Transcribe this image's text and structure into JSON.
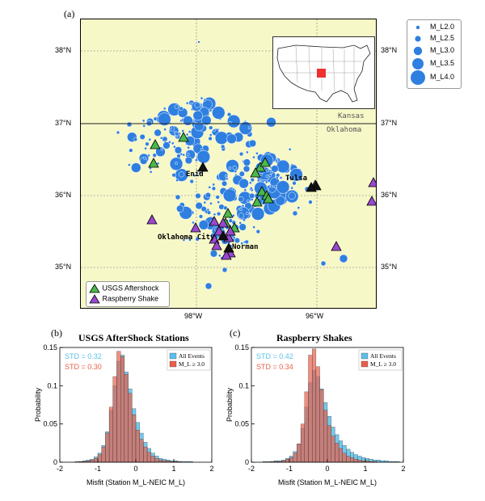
{
  "figure": {
    "panel_a": {
      "label": "(a)",
      "lat_ticks": [
        "38°N",
        "37°N",
        "36°N",
        "35°N"
      ],
      "lon_ticks": [
        "98°W",
        "96°W"
      ],
      "state_labels": {
        "kansas": "Kansas",
        "oklahoma": "Oklahoma"
      },
      "cities": {
        "enid": "Enid",
        "tulsa": "Tulsa",
        "okc": "Oklahoma City",
        "norman": "Norman"
      },
      "station_legend": {
        "usgs": "USGS Aftershock",
        "rshake": "Raspberry Shake"
      },
      "magnitude_legend": [
        "M_L2.0",
        "M_L2.5",
        "M_L3.0",
        "M_L3.5",
        "M_L4.0"
      ],
      "colors": {
        "map_bg": "#f7f8c8",
        "event": "#2f7fe0",
        "usgs": "#4bb84b",
        "rshake": "#9a48d0",
        "inset_marker": "#f03030"
      }
    },
    "panel_b": {
      "label": "(b)",
      "title": "USGS AfterShock Stations",
      "std_all": "STD = 0.32",
      "std_m3": "STD = 0.30",
      "legend_all": "All Events",
      "legend_m3": "M_L ≥ 3.0",
      "ylabel": "Probability",
      "xlabel": "Misfit (Station M_L-NEIC M_L)",
      "x_ticks": [
        "-2",
        "-1",
        "0",
        "1",
        "2"
      ],
      "y_ticks": [
        "0",
        "0.05",
        "0.1",
        "0.15"
      ]
    },
    "panel_c": {
      "label": "(c)",
      "title": "Raspberry Shakes",
      "std_all": "STD = 0.42",
      "std_m3": "STD = 0.34",
      "legend_all": "All Events",
      "legend_m3": "M_L ≥ 3.0",
      "ylabel": "Probability",
      "xlabel": "Misfit (Station M_L-NEIC M_L)",
      "x_ticks": [
        "-2",
        "-1",
        "0",
        "1",
        "2"
      ],
      "y_ticks": [
        "0",
        "0.05",
        "0.1",
        "0.15"
      ]
    },
    "colors": {
      "all_events": "#5bc0ea",
      "m3_events": "#e8604a"
    }
  },
  "chart_data": [
    {
      "type": "bar",
      "title": "USGS AfterShock Stations",
      "xlabel": "Misfit (Station M_L-NEIC M_L)",
      "ylabel": "Probability",
      "xlim": [
        -2,
        2
      ],
      "ylim": [
        0,
        0.15
      ],
      "bin_width": 0.1,
      "bin_starts": [
        -1.6,
        -1.5,
        -1.4,
        -1.3,
        -1.2,
        -1.1,
        -1.0,
        -0.9,
        -0.8,
        -0.7,
        -0.6,
        -0.5,
        -0.4,
        -0.3,
        -0.2,
        -0.1,
        0.0,
        0.1,
        0.2,
        0.3,
        0.4,
        0.5,
        0.6,
        0.7,
        0.8,
        0.9,
        1.0,
        1.1,
        1.2,
        1.3,
        1.4
      ],
      "series": [
        {
          "name": "All Events",
          "values": [
            0.001,
            0.001,
            0.002,
            0.003,
            0.004,
            0.007,
            0.012,
            0.022,
            0.04,
            0.068,
            0.1,
            0.132,
            0.14,
            0.118,
            0.096,
            0.07,
            0.052,
            0.038,
            0.026,
            0.018,
            0.012,
            0.008,
            0.005,
            0.004,
            0.003,
            0.002,
            0.002,
            0.001,
            0.001,
            0.001,
            0.001
          ]
        },
        {
          "name": "M_L ≥ 3.0",
          "values": [
            0.0,
            0.001,
            0.001,
            0.002,
            0.003,
            0.005,
            0.01,
            0.02,
            0.038,
            0.072,
            0.112,
            0.145,
            0.138,
            0.115,
            0.09,
            0.062,
            0.042,
            0.03,
            0.02,
            0.013,
            0.008,
            0.005,
            0.003,
            0.002,
            0.002,
            0.001,
            0.001,
            0.001,
            0.0,
            0.0,
            0.0
          ]
        }
      ]
    },
    {
      "type": "bar",
      "title": "Raspberry Shakes",
      "xlabel": "Misfit (Station M_L-NEIC M_L)",
      "ylabel": "Probability",
      "xlim": [
        -2,
        2
      ],
      "ylim": [
        0,
        0.15
      ],
      "bin_width": 0.1,
      "bin_starts": [
        -1.7,
        -1.6,
        -1.5,
        -1.4,
        -1.3,
        -1.2,
        -1.1,
        -1.0,
        -0.9,
        -0.8,
        -0.7,
        -0.6,
        -0.5,
        -0.4,
        -0.3,
        -0.2,
        -0.1,
        0.0,
        0.1,
        0.2,
        0.3,
        0.4,
        0.5,
        0.6,
        0.7,
        0.8,
        0.9,
        1.0,
        1.1,
        1.2,
        1.3,
        1.4,
        1.5,
        1.6,
        1.7,
        1.8
      ],
      "series": [
        {
          "name": "All Events",
          "values": [
            0.001,
            0.001,
            0.001,
            0.002,
            0.002,
            0.003,
            0.005,
            0.008,
            0.014,
            0.024,
            0.044,
            0.072,
            0.104,
            0.12,
            0.112,
            0.096,
            0.078,
            0.06,
            0.046,
            0.036,
            0.028,
            0.022,
            0.017,
            0.013,
            0.01,
            0.008,
            0.006,
            0.005,
            0.004,
            0.003,
            0.003,
            0.002,
            0.002,
            0.001,
            0.001,
            0.001
          ]
        },
        {
          "name": "M_L ≥ 3.0",
          "values": [
            0.0,
            0.0,
            0.001,
            0.001,
            0.001,
            0.002,
            0.004,
            0.006,
            0.012,
            0.024,
            0.05,
            0.092,
            0.14,
            0.148,
            0.125,
            0.095,
            0.068,
            0.048,
            0.034,
            0.025,
            0.018,
            0.012,
            0.008,
            0.006,
            0.004,
            0.003,
            0.002,
            0.002,
            0.001,
            0.001,
            0.0,
            0.0,
            0.0,
            0.0,
            0.0,
            0.0
          ]
        }
      ]
    }
  ]
}
